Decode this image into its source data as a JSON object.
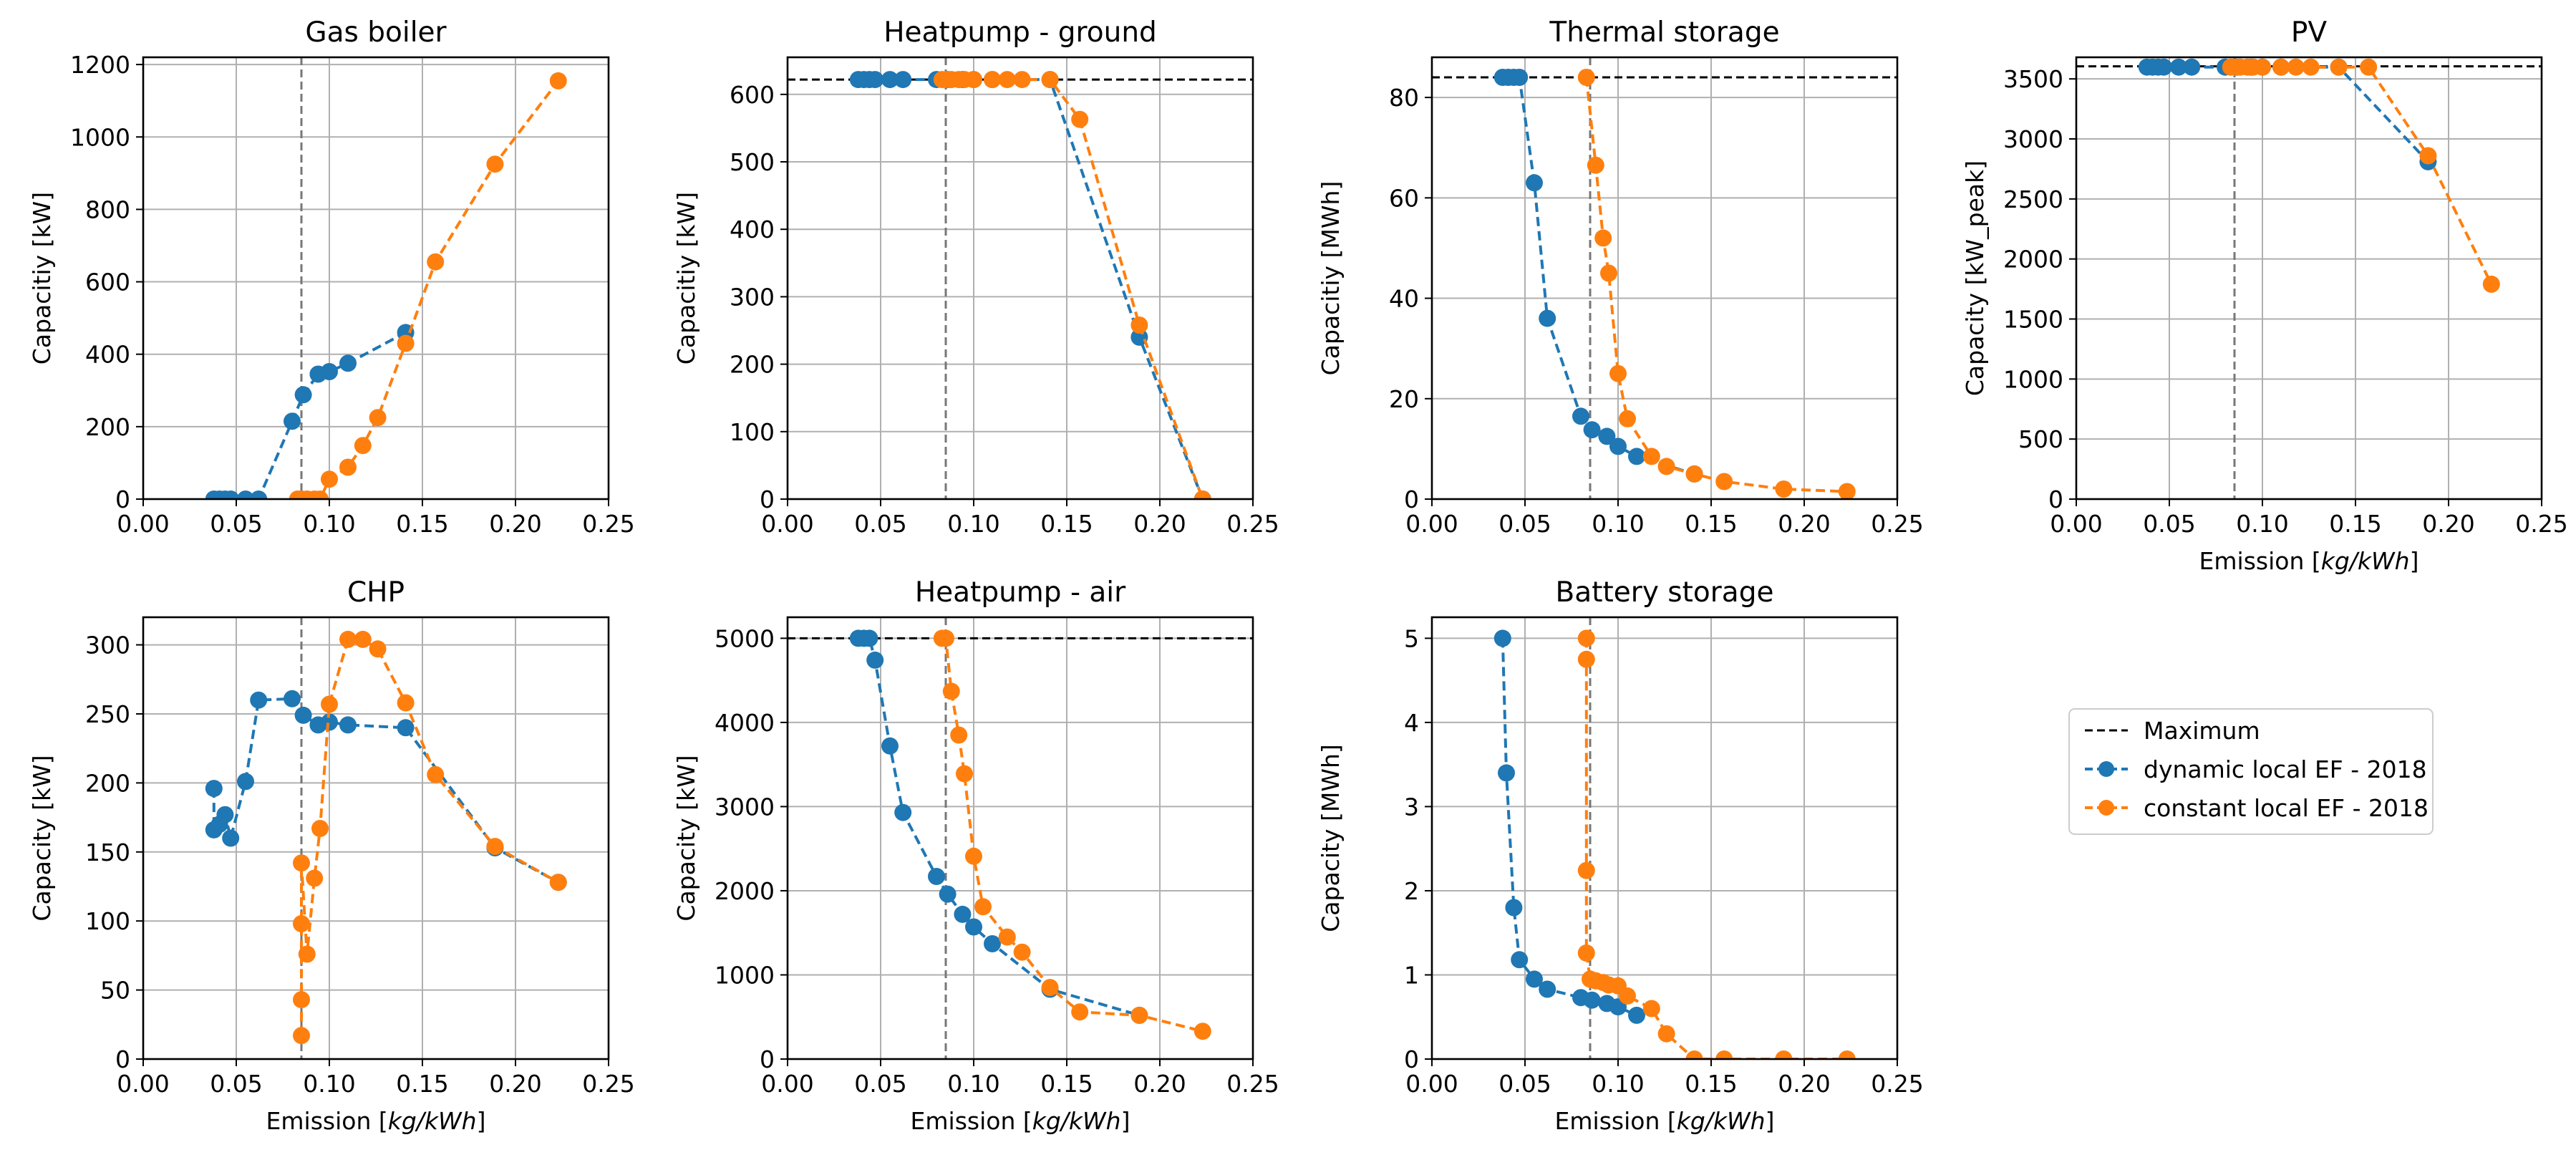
{
  "figure": {
    "legend": [
      {
        "label": "Maximum",
        "color": "#000000",
        "style": "dashed-line"
      },
      {
        "label": "dynamic local EF - 2018",
        "color": "#1f77b4",
        "style": "dashed-marker"
      },
      {
        "label": "constant local EF - 2018",
        "color": "#ff7f0e",
        "style": "dashed-marker"
      }
    ]
  },
  "chart_data": [
    {
      "id": "gas-boiler",
      "type": "line",
      "title": "Gas boiler",
      "xlabel": "",
      "ylabel": "Capacitiy [kW]",
      "xlim": [
        0,
        0.25
      ],
      "ylim": [
        0,
        1220
      ],
      "xticks": [
        "0.00",
        "0.05",
        "0.10",
        "0.15",
        "0.20",
        "0.25"
      ],
      "yticks": [
        {
          "v": 0,
          "label": "0"
        },
        {
          "v": 200,
          "label": "200"
        },
        {
          "v": 400,
          "label": "400"
        },
        {
          "v": 600,
          "label": "600"
        },
        {
          "v": 800,
          "label": "800"
        },
        {
          "v": 1000,
          "label": "1000"
        },
        {
          "v": 1200,
          "label": "1200"
        }
      ],
      "maximum": null,
      "vline": 0.085,
      "series": [
        {
          "name": "dynamic local EF - 2018",
          "color": "#1f77b4",
          "x": [
            0.038,
            0.041,
            0.044,
            0.047,
            0.055,
            0.062,
            0.08,
            0.086,
            0.094,
            0.1,
            0.11,
            0.141
          ],
          "y": [
            0,
            0,
            0,
            0,
            0,
            0,
            215,
            288,
            345,
            352,
            375,
            460
          ]
        },
        {
          "name": "constant local EF - 2018",
          "color": "#ff7f0e",
          "x": [
            0.083,
            0.085,
            0.088,
            0.092,
            0.095,
            0.1,
            0.11,
            0.118,
            0.126,
            0.141,
            0.157,
            0.189,
            0.223
          ],
          "y": [
            0,
            0,
            0,
            0,
            0,
            55,
            88,
            148,
            225,
            430,
            655,
            925,
            1155
          ]
        }
      ]
    },
    {
      "id": "heatpump-ground",
      "type": "line",
      "title": "Heatpump - ground",
      "xlabel": "",
      "ylabel": "Capacitiy [kW]",
      "xlim": [
        0,
        0.25
      ],
      "ylim": [
        0,
        655
      ],
      "xticks": [
        "0.00",
        "0.05",
        "0.10",
        "0.15",
        "0.20",
        "0.25"
      ],
      "yticks": [
        {
          "v": 0,
          "label": "0"
        },
        {
          "v": 100,
          "label": "100"
        },
        {
          "v": 200,
          "label": "200"
        },
        {
          "v": 300,
          "label": "300"
        },
        {
          "v": 400,
          "label": "400"
        },
        {
          "v": 500,
          "label": "500"
        },
        {
          "v": 600,
          "label": "600"
        }
      ],
      "maximum": 622,
      "vline": 0.085,
      "series": [
        {
          "name": "dynamic local EF - 2018",
          "color": "#1f77b4",
          "x": [
            0.038,
            0.041,
            0.044,
            0.047,
            0.055,
            0.062,
            0.08,
            0.086,
            0.094,
            0.1,
            0.11,
            0.141,
            0.189,
            0.223
          ],
          "y": [
            622,
            622,
            622,
            622,
            622,
            622,
            622,
            622,
            622,
            622,
            622,
            622,
            240,
            0
          ]
        },
        {
          "name": "constant local EF - 2018",
          "color": "#ff7f0e",
          "x": [
            0.083,
            0.085,
            0.088,
            0.092,
            0.095,
            0.1,
            0.11,
            0.118,
            0.126,
            0.141,
            0.157,
            0.189,
            0.223
          ],
          "y": [
            622,
            622,
            622,
            622,
            622,
            622,
            622,
            622,
            622,
            622,
            563,
            258,
            0
          ]
        }
      ]
    },
    {
      "id": "thermal-storage",
      "type": "line",
      "title": "Thermal storage",
      "xlabel": "",
      "ylabel": "Capacitiy [MWh]",
      "xlim": [
        0,
        0.25
      ],
      "ylim": [
        0,
        88
      ],
      "xticks": [
        "0.00",
        "0.05",
        "0.10",
        "0.15",
        "0.20",
        "0.25"
      ],
      "yticks": [
        {
          "v": 0,
          "label": "0"
        },
        {
          "v": 20,
          "label": "20"
        },
        {
          "v": 40,
          "label": "40"
        },
        {
          "v": 60,
          "label": "60"
        },
        {
          "v": 80,
          "label": "80"
        }
      ],
      "maximum": 84,
      "vline": 0.085,
      "series": [
        {
          "name": "dynamic local EF - 2018",
          "color": "#1f77b4",
          "x": [
            0.038,
            0.041,
            0.044,
            0.047,
            0.055,
            0.062,
            0.08,
            0.086,
            0.094,
            0.1,
            0.11,
            0.141
          ],
          "y": [
            84,
            84,
            84,
            84,
            63,
            36,
            16.5,
            13.8,
            12.5,
            10.5,
            8.5,
            5
          ]
        },
        {
          "name": "constant local EF - 2018",
          "color": "#ff7f0e",
          "x": [
            0.083,
            0.088,
            0.092,
            0.095,
            0.1,
            0.105,
            0.118,
            0.126,
            0.141,
            0.157,
            0.189,
            0.223
          ],
          "y": [
            84,
            66.5,
            52,
            45,
            25,
            16,
            8.5,
            6.5,
            5,
            3.5,
            2,
            1.5
          ]
        }
      ]
    },
    {
      "id": "pv",
      "type": "line",
      "title": "PV",
      "xlabel": "Emission [kg/kWh]",
      "ylabel": "Capacity [kW_peak]",
      "xlim": [
        0,
        0.25
      ],
      "ylim": [
        0,
        3680
      ],
      "xticks": [
        "0.00",
        "0.05",
        "0.10",
        "0.15",
        "0.20",
        "0.25"
      ],
      "yticks": [
        {
          "v": 0,
          "label": "0"
        },
        {
          "v": 500,
          "label": "500"
        },
        {
          "v": 1000,
          "label": "1000"
        },
        {
          "v": 1500,
          "label": "1500"
        },
        {
          "v": 2000,
          "label": "2000"
        },
        {
          "v": 2500,
          "label": "2500"
        },
        {
          "v": 3000,
          "label": "3000"
        },
        {
          "v": 3500,
          "label": "3500"
        }
      ],
      "maximum": 3605,
      "vline": 0.085,
      "series": [
        {
          "name": "dynamic local EF - 2018",
          "color": "#1f77b4",
          "x": [
            0.038,
            0.041,
            0.044,
            0.047,
            0.055,
            0.062,
            0.08,
            0.086,
            0.094,
            0.1,
            0.11,
            0.141,
            0.189
          ],
          "y": [
            3598,
            3598,
            3598,
            3598,
            3598,
            3598,
            3598,
            3598,
            3598,
            3598,
            3598,
            3598,
            2810
          ]
        },
        {
          "name": "constant local EF - 2018",
          "color": "#ff7f0e",
          "x": [
            0.083,
            0.085,
            0.088,
            0.092,
            0.095,
            0.1,
            0.11,
            0.118,
            0.126,
            0.141,
            0.157,
            0.189,
            0.223
          ],
          "y": [
            3598,
            3598,
            3598,
            3598,
            3598,
            3598,
            3598,
            3598,
            3598,
            3598,
            3598,
            2860,
            1790
          ]
        }
      ]
    },
    {
      "id": "chp",
      "type": "line",
      "title": "CHP",
      "xlabel": "Emission [kg/kWh]",
      "ylabel": "Capacity [kW]",
      "xlim": [
        0,
        0.25
      ],
      "ylim": [
        0,
        320
      ],
      "xticks": [
        "0.00",
        "0.05",
        "0.10",
        "0.15",
        "0.20",
        "0.25"
      ],
      "yticks": [
        {
          "v": 0,
          "label": "0"
        },
        {
          "v": 50,
          "label": "50"
        },
        {
          "v": 100,
          "label": "100"
        },
        {
          "v": 150,
          "label": "150"
        },
        {
          "v": 200,
          "label": "200"
        },
        {
          "v": 250,
          "label": "250"
        },
        {
          "v": 300,
          "label": "300"
        }
      ],
      "maximum": null,
      "vline": 0.085,
      "series": [
        {
          "name": "dynamic local EF - 2018",
          "color": "#1f77b4",
          "x": [
            0.038,
            0.038,
            0.041,
            0.044,
            0.047,
            0.055,
            0.062,
            0.08,
            0.086,
            0.094,
            0.1,
            0.11,
            0.141,
            0.189,
            0.223
          ],
          "y": [
            196,
            166,
            170,
            177,
            160,
            201,
            260,
            261,
            249,
            242,
            244,
            242,
            240,
            153,
            128
          ]
        },
        {
          "name": "constant local EF - 2018",
          "color": "#ff7f0e",
          "x": [
            0.085,
            0.085,
            0.085,
            0.085,
            0.088,
            0.092,
            0.095,
            0.1,
            0.11,
            0.118,
            0.126,
            0.141,
            0.157,
            0.189,
            0.223
          ],
          "y": [
            17,
            43,
            98,
            142,
            76,
            131,
            167,
            257,
            304,
            304,
            297,
            258,
            206,
            154,
            128
          ]
        }
      ]
    },
    {
      "id": "heatpump-air",
      "type": "line",
      "title": "Heatpump - air",
      "xlabel": "Emission [kg/kWh]",
      "ylabel": "Capacity [kW]",
      "xlim": [
        0,
        0.25
      ],
      "ylim": [
        0,
        5250
      ],
      "xticks": [
        "0.00",
        "0.05",
        "0.10",
        "0.15",
        "0.20",
        "0.25"
      ],
      "yticks": [
        {
          "v": 0,
          "label": "0"
        },
        {
          "v": 1000,
          "label": "1000"
        },
        {
          "v": 2000,
          "label": "2000"
        },
        {
          "v": 3000,
          "label": "3000"
        },
        {
          "v": 4000,
          "label": "4000"
        },
        {
          "v": 5000,
          "label": "5000"
        }
      ],
      "maximum": 5000,
      "vline": 0.085,
      "series": [
        {
          "name": "dynamic local EF - 2018",
          "color": "#1f77b4",
          "x": [
            0.038,
            0.041,
            0.044,
            0.047,
            0.055,
            0.062,
            0.08,
            0.086,
            0.094,
            0.1,
            0.11,
            0.141,
            0.189
          ],
          "y": [
            5000,
            5000,
            5000,
            4740,
            3720,
            2930,
            2170,
            1960,
            1720,
            1570,
            1370,
            830,
            520
          ]
        },
        {
          "name": "constant local EF - 2018",
          "color": "#ff7f0e",
          "x": [
            0.083,
            0.085,
            0.088,
            0.092,
            0.095,
            0.1,
            0.105,
            0.118,
            0.126,
            0.141,
            0.157,
            0.189,
            0.223
          ],
          "y": [
            5000,
            5000,
            4370,
            3850,
            3390,
            2410,
            1810,
            1450,
            1270,
            850,
            560,
            520,
            330
          ]
        }
      ]
    },
    {
      "id": "battery-storage",
      "type": "line",
      "title": "Battery storage",
      "xlabel": "Emission [kg/kWh]",
      "ylabel": "Capacity [MWh]",
      "xlim": [
        0,
        0.25
      ],
      "ylim": [
        0,
        5.25
      ],
      "xticks": [
        "0.00",
        "0.05",
        "0.10",
        "0.15",
        "0.20",
        "0.25"
      ],
      "yticks": [
        {
          "v": 0,
          "label": "0"
        },
        {
          "v": 1,
          "label": "1"
        },
        {
          "v": 2,
          "label": "2"
        },
        {
          "v": 3,
          "label": "3"
        },
        {
          "v": 4,
          "label": "4"
        },
        {
          "v": 5,
          "label": "5"
        }
      ],
      "maximum": null,
      "vline": 0.085,
      "series": [
        {
          "name": "dynamic local EF - 2018",
          "color": "#1f77b4",
          "x": [
            0.038,
            0.04,
            0.044,
            0.047,
            0.055,
            0.062,
            0.08,
            0.086,
            0.094,
            0.1,
            0.11
          ],
          "y": [
            5,
            3.4,
            1.8,
            1.18,
            0.95,
            0.83,
            0.73,
            0.7,
            0.66,
            0.62,
            0.52
          ]
        },
        {
          "name": "constant local EF - 2018",
          "color": "#ff7f0e",
          "x": [
            0.083,
            0.083,
            0.083,
            0.083,
            0.085,
            0.088,
            0.092,
            0.095,
            0.1,
            0.105,
            0.118,
            0.126,
            0.141,
            0.157,
            0.189,
            0.223
          ],
          "y": [
            5,
            4.75,
            2.24,
            1.26,
            0.95,
            0.93,
            0.91,
            0.88,
            0.87,
            0.75,
            0.6,
            0.3,
            0,
            0,
            0,
            0
          ]
        }
      ]
    }
  ]
}
